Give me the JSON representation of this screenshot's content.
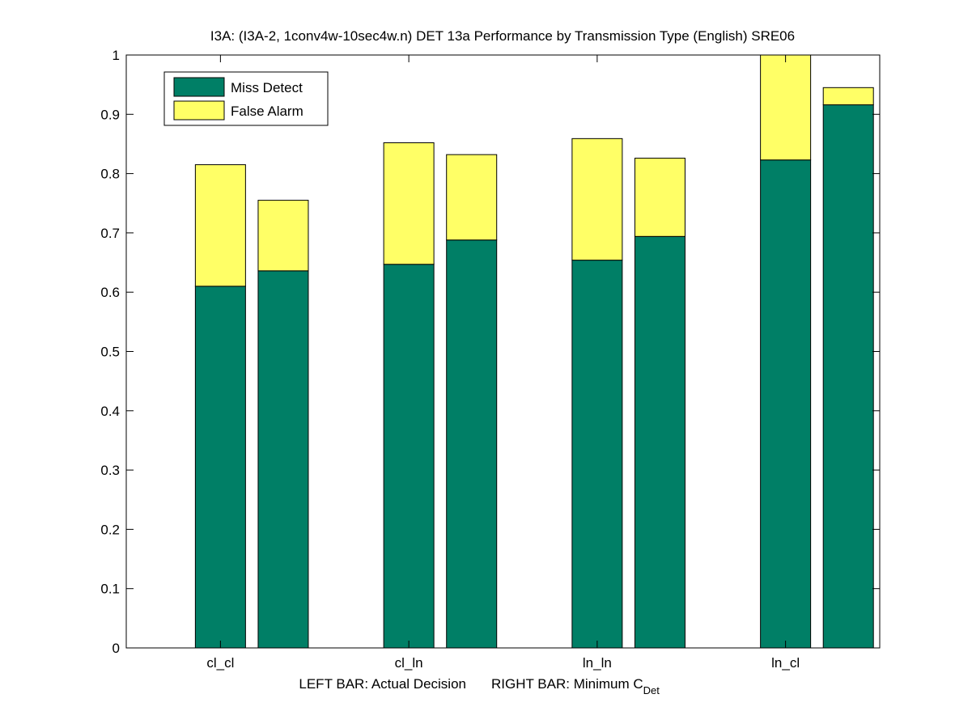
{
  "chart_data": {
    "type": "bar",
    "title": "I3A: (I3A-2, 1conv4w-10sec4w.n) DET 13a Performance by Transmission Type (English) SRE06",
    "xlabel": {
      "left": "LEFT BAR: Actual Decision",
      "right_prefix": "RIGHT BAR: Minimum C",
      "right_subscript": "Det"
    },
    "ylabel": "",
    "ylim": [
      0,
      1
    ],
    "yticks": [
      "0",
      "0.1",
      "0.2",
      "0.3",
      "0.4",
      "0.5",
      "0.6",
      "0.7",
      "0.8",
      "0.9",
      "1"
    ],
    "categories": [
      "cl_cl",
      "cl_ln",
      "ln_ln",
      "ln_cl"
    ],
    "bar_roles": [
      "Actual Decision",
      "Minimum C_Det"
    ],
    "stacked": true,
    "series": [
      {
        "name": "Miss Detect",
        "color": "#007f66",
        "values": {
          "actual_decision": [
            0.61,
            0.647,
            0.654,
            0.823
          ],
          "minimum_cdet": [
            0.636,
            0.688,
            0.694,
            0.916
          ]
        }
      },
      {
        "name": "False Alarm",
        "color": "#ffff66",
        "values": {
          "actual_decision": [
            0.205,
            0.205,
            0.205,
            0.177
          ],
          "minimum_cdet": [
            0.119,
            0.144,
            0.132,
            0.029
          ]
        }
      }
    ],
    "totals": {
      "actual_decision": [
        0.815,
        0.852,
        0.859,
        1.0
      ],
      "minimum_cdet": [
        0.755,
        0.832,
        0.826,
        0.945
      ]
    },
    "legend": {
      "placement": "top-left",
      "entries": [
        "Miss Detect",
        "False Alarm"
      ]
    },
    "grid": false
  }
}
